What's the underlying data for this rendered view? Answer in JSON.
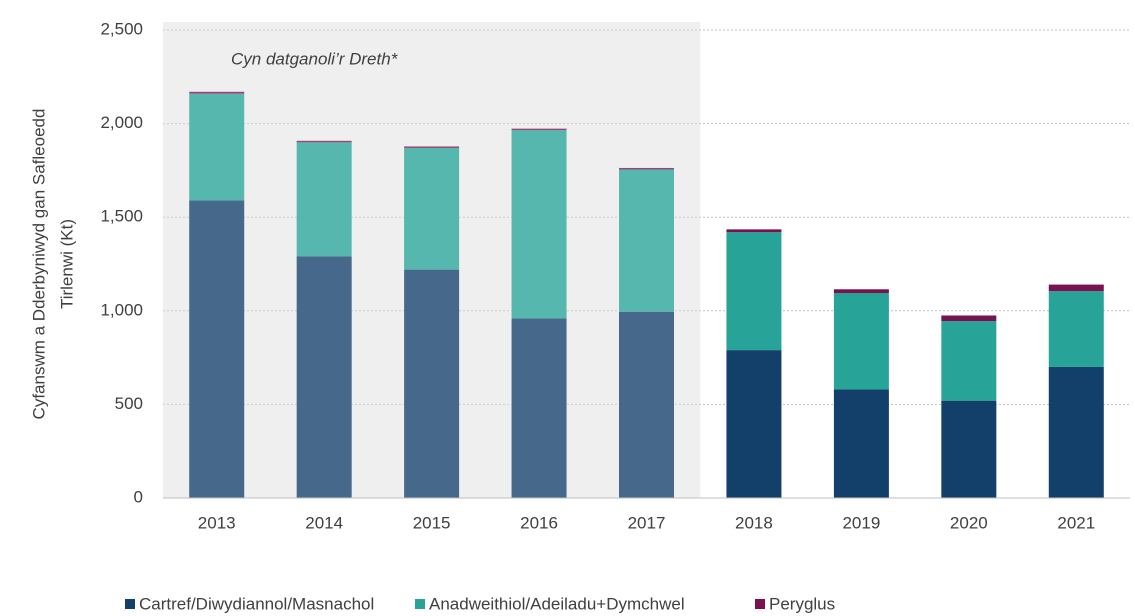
{
  "chart_data": {
    "type": "stacked_bar",
    "y_label": [
      "Cyfanswm a Dderbyniwyd gan Safleoedd",
      "Tirlenwi (Kt)"
    ],
    "categories": [
      "2013",
      "2014",
      "2015",
      "2016",
      "2017",
      "2018",
      "2019",
      "2020",
      "2021"
    ],
    "series": [
      {
        "name": "Cartref/Diwydiannol/Masnachol",
        "color": "#133f6b",
        "values": [
          1590,
          1290,
          1220,
          960,
          995,
          790,
          580,
          520,
          700
        ]
      },
      {
        "name": "Anadweithiol/Adeiladu+Dymchwel",
        "color": "#27a398",
        "values": [
          570,
          610,
          650,
          1005,
          760,
          630,
          515,
          425,
          405
        ]
      },
      {
        "name": "Peryglus",
        "color": "#7a1250",
        "values": [
          10,
          8,
          8,
          8,
          8,
          15,
          20,
          30,
          35
        ]
      }
    ],
    "ylim": [
      0,
      2500
    ],
    "yticks": [
      0,
      500,
      {
        "value": 1000,
        "label": "1,000"
      },
      {
        "value": 1500,
        "label": "1,500"
      },
      {
        "value": 2000,
        "label": "2,000"
      },
      {
        "value": 2500,
        "label": "2,500"
      }
    ],
    "grid": true,
    "legend": "bottom",
    "shaded_region": {
      "from": "2013",
      "to": "2017",
      "label": "Cyn datganoli’r Dreth*"
    }
  }
}
